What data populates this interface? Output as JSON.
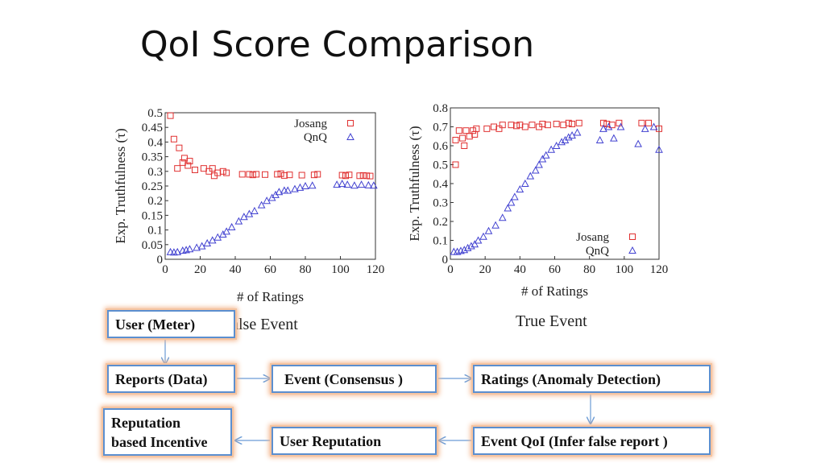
{
  "slide": {
    "title": "QoI Score Comparison"
  },
  "chart_data": [
    {
      "type": "scatter",
      "title": "False Event",
      "xlabel": "# of Ratings",
      "ylabel": "Exp. Truthfulness (τ)",
      "xlim": [
        0,
        120
      ],
      "ylim": [
        0,
        0.5
      ],
      "xticks": [
        "0",
        "20",
        "40",
        "60",
        "80",
        "100",
        "120"
      ],
      "yticks": [
        "0",
        "0.05",
        "0.1",
        "0.15",
        "0.2",
        "0.25",
        "0.3",
        "0.35",
        "0.4",
        "0.45",
        "0.5"
      ],
      "legend": "top-right",
      "series": [
        {
          "name": "Josang",
          "marker": "square",
          "color": "#e03030",
          "points": [
            [
              3,
              0.49
            ],
            [
              5,
              0.41
            ],
            [
              7,
              0.31
            ],
            [
              8,
              0.38
            ],
            [
              10,
              0.33
            ],
            [
              11,
              0.345
            ],
            [
              13,
              0.32
            ],
            [
              14,
              0.335
            ],
            [
              17,
              0.305
            ],
            [
              22,
              0.31
            ],
            [
              25,
              0.3
            ],
            [
              27,
              0.31
            ],
            [
              28,
              0.285
            ],
            [
              30,
              0.295
            ],
            [
              33,
              0.3
            ],
            [
              35,
              0.295
            ],
            [
              44,
              0.29
            ],
            [
              48,
              0.29
            ],
            [
              50,
              0.288
            ],
            [
              52,
              0.29
            ],
            [
              57,
              0.289
            ],
            [
              64,
              0.29
            ],
            [
              66,
              0.292
            ],
            [
              68,
              0.286
            ],
            [
              71,
              0.288
            ],
            [
              78,
              0.287
            ],
            [
              85,
              0.288
            ],
            [
              87,
              0.29
            ],
            [
              101,
              0.287
            ],
            [
              103,
              0.285
            ],
            [
              105,
              0.288
            ],
            [
              111,
              0.285
            ],
            [
              113,
              0.286
            ],
            [
              115,
              0.285
            ],
            [
              117,
              0.284
            ]
          ]
        },
        {
          "name": "QnQ",
          "marker": "triangle",
          "color": "#4040d0",
          "points": [
            [
              3,
              0.025
            ],
            [
              5,
              0.024
            ],
            [
              7,
              0.025
            ],
            [
              10,
              0.03
            ],
            [
              12,
              0.032
            ],
            [
              14,
              0.035
            ],
            [
              18,
              0.04
            ],
            [
              21,
              0.045
            ],
            [
              24,
              0.055
            ],
            [
              27,
              0.065
            ],
            [
              30,
              0.075
            ],
            [
              33,
              0.085
            ],
            [
              35,
              0.095
            ],
            [
              38,
              0.11
            ],
            [
              42,
              0.13
            ],
            [
              45,
              0.145
            ],
            [
              48,
              0.155
            ],
            [
              51,
              0.165
            ],
            [
              55,
              0.185
            ],
            [
              58,
              0.2
            ],
            [
              61,
              0.21
            ],
            [
              63,
              0.22
            ],
            [
              65,
              0.23
            ],
            [
              68,
              0.235
            ],
            [
              70,
              0.235
            ],
            [
              74,
              0.24
            ],
            [
              77,
              0.245
            ],
            [
              80,
              0.25
            ],
            [
              84,
              0.252
            ],
            [
              98,
              0.255
            ],
            [
              101,
              0.258
            ],
            [
              104,
              0.255
            ],
            [
              108,
              0.252
            ],
            [
              112,
              0.255
            ],
            [
              116,
              0.253
            ],
            [
              119,
              0.252
            ]
          ]
        }
      ]
    },
    {
      "type": "scatter",
      "title": "True Event",
      "xlabel": "# of Ratings",
      "ylabel": "Exp. Truthfulness (τ)",
      "xlim": [
        0,
        120
      ],
      "ylim": [
        0,
        0.8
      ],
      "xticks": [
        "0",
        "20",
        "40",
        "60",
        "80",
        "100",
        "120"
      ],
      "yticks": [
        "0",
        "0.1",
        "0.2",
        "0.3",
        "0.4",
        "0.5",
        "0.6",
        "0.7",
        "0.8"
      ],
      "legend": "bottom-right",
      "series": [
        {
          "name": "Josang",
          "marker": "square",
          "color": "#e03030",
          "points": [
            [
              3,
              0.5
            ],
            [
              3,
              0.63
            ],
            [
              5,
              0.68
            ],
            [
              7,
              0.64
            ],
            [
              8,
              0.6
            ],
            [
              9,
              0.68
            ],
            [
              11,
              0.65
            ],
            [
              13,
              0.68
            ],
            [
              14,
              0.66
            ],
            [
              15,
              0.69
            ],
            [
              21,
              0.69
            ],
            [
              25,
              0.7
            ],
            [
              28,
              0.69
            ],
            [
              30,
              0.71
            ],
            [
              35,
              0.71
            ],
            [
              38,
              0.705
            ],
            [
              40,
              0.71
            ],
            [
              43,
              0.7
            ],
            [
              47,
              0.71
            ],
            [
              51,
              0.7
            ],
            [
              53,
              0.715
            ],
            [
              56,
              0.71
            ],
            [
              61,
              0.715
            ],
            [
              65,
              0.71
            ],
            [
              68,
              0.72
            ],
            [
              70,
              0.715
            ],
            [
              74,
              0.72
            ],
            [
              88,
              0.72
            ],
            [
              90,
              0.715
            ],
            [
              93,
              0.71
            ],
            [
              97,
              0.72
            ],
            [
              110,
              0.72
            ],
            [
              114,
              0.72
            ],
            [
              120,
              0.69
            ]
          ]
        },
        {
          "name": "QnQ",
          "marker": "triangle",
          "color": "#4040d0",
          "points": [
            [
              2,
              0.04
            ],
            [
              4,
              0.04
            ],
            [
              6,
              0.045
            ],
            [
              8,
              0.05
            ],
            [
              10,
              0.06
            ],
            [
              12,
              0.07
            ],
            [
              14,
              0.08
            ],
            [
              16,
              0.1
            ],
            [
              19,
              0.12
            ],
            [
              22,
              0.15
            ],
            [
              26,
              0.18
            ],
            [
              30,
              0.22
            ],
            [
              33,
              0.27
            ],
            [
              35,
              0.3
            ],
            [
              37,
              0.33
            ],
            [
              40,
              0.37
            ],
            [
              43,
              0.4
            ],
            [
              46,
              0.44
            ],
            [
              49,
              0.47
            ],
            [
              51,
              0.5
            ],
            [
              53,
              0.53
            ],
            [
              55,
              0.55
            ],
            [
              58,
              0.58
            ],
            [
              61,
              0.6
            ],
            [
              64,
              0.62
            ],
            [
              66,
              0.63
            ],
            [
              68,
              0.645
            ],
            [
              70,
              0.655
            ],
            [
              73,
              0.67
            ],
            [
              86,
              0.63
            ],
            [
              88,
              0.69
            ],
            [
              91,
              0.7
            ],
            [
              94,
              0.64
            ],
            [
              98,
              0.7
            ],
            [
              108,
              0.61
            ],
            [
              112,
              0.69
            ],
            [
              117,
              0.7
            ],
            [
              120,
              0.58
            ]
          ]
        }
      ]
    }
  ],
  "flow": {
    "user_meter": "User  (Meter)",
    "reports": "Reports (Data)",
    "event": "Event  (Consensus )",
    "ratings": "Ratings  (Anomaly Detection)",
    "incentive_line1": "Reputation",
    "incentive_line2": "based Incentive",
    "user_reputation": "User Reputation",
    "event_qoi": "Event QoI (Infer false report )"
  }
}
